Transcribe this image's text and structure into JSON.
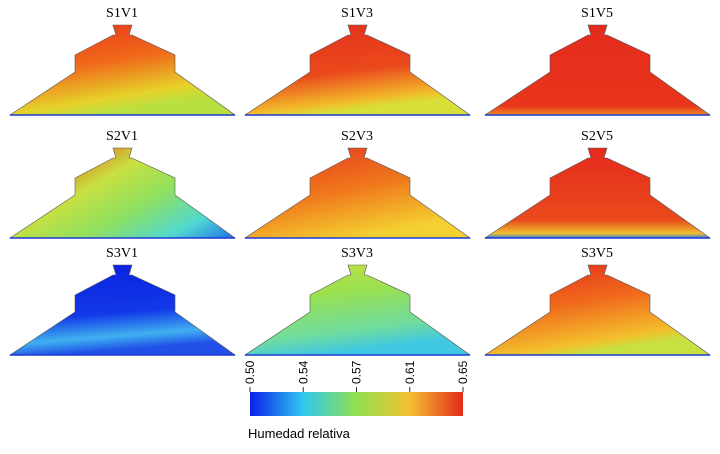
{
  "panels": [
    {
      "title": "S1V1"
    },
    {
      "title": "S1V3"
    },
    {
      "title": "S1V5"
    },
    {
      "title": "S2V1"
    },
    {
      "title": "S2V3"
    },
    {
      "title": "S2V5"
    },
    {
      "title": "S3V1"
    },
    {
      "title": "S3V3"
    },
    {
      "title": "S3V5"
    }
  ],
  "colorbar": {
    "label": "Humedad relativa",
    "lim": [
      0.5,
      0.65
    ],
    "ticks": [
      {
        "value": 0.5,
        "label": "0.50"
      },
      {
        "value": 0.5375,
        "label": "0.54"
      },
      {
        "value": 0.575,
        "label": "0.57"
      },
      {
        "value": 0.6125,
        "label": "0.61"
      },
      {
        "value": 0.65,
        "label": "0.65"
      }
    ]
  }
}
